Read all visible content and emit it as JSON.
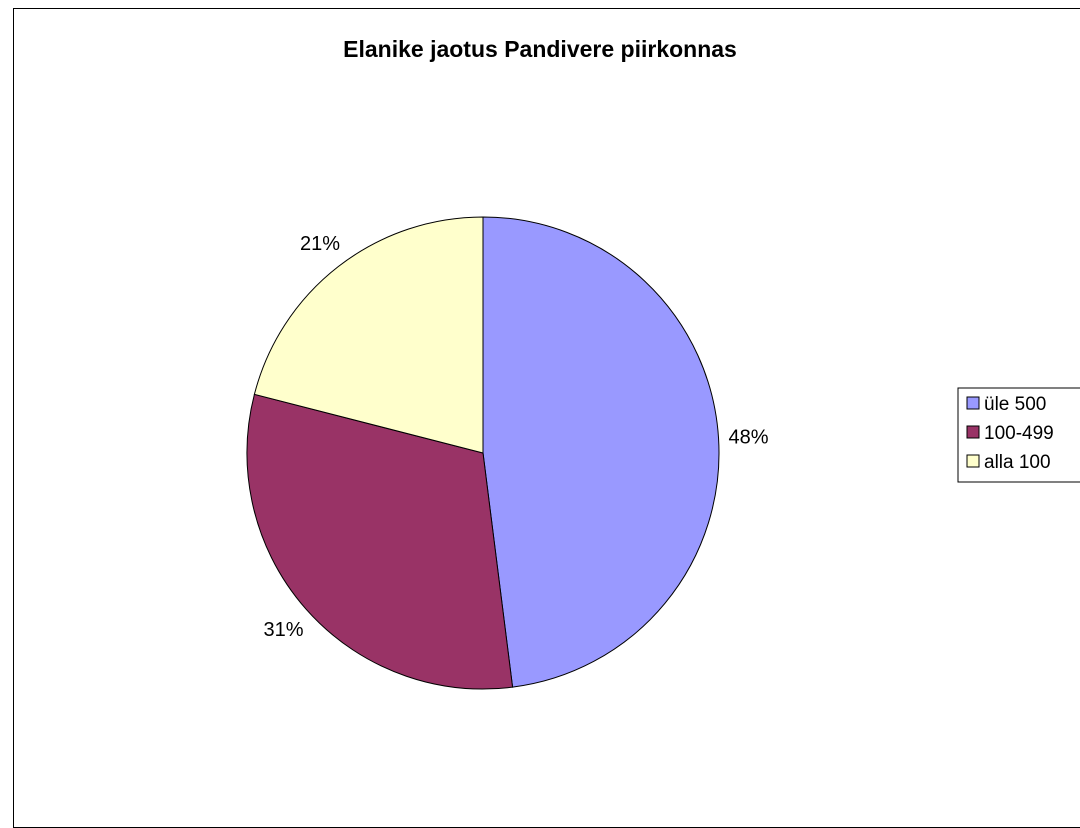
{
  "chart_data": {
    "type": "pie",
    "title": "Elanike jaotus Pandivere piirkonnas",
    "categories": [
      "üle 500",
      "100-499",
      "alla 100"
    ],
    "values": [
      48,
      31,
      21
    ],
    "labels": [
      "48%",
      "31%",
      "21%"
    ],
    "colors": [
      "#9999FF",
      "#993366",
      "#FFFFCC"
    ],
    "start_angle_deg": 0,
    "direction": "clockwise",
    "legend": "right"
  }
}
